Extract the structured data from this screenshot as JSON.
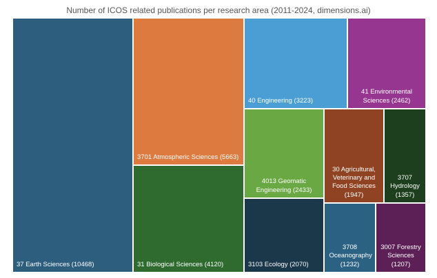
{
  "chart_data": {
    "type": "treemap",
    "title": "Number of ICOS related publications per research area (2011-2024, dimensions.ai)",
    "items": [
      {
        "label": "37 Earth Sciences (10468)",
        "category": "37 Earth Sciences",
        "value": 10468,
        "color": "#2e5e7e"
      },
      {
        "label": "3701 Atmospheric Sciences (5663)",
        "category": "3701 Atmospheric Sciences",
        "value": 5663,
        "color": "#dd7a40"
      },
      {
        "label": "31 Biological Sciences (4120)",
        "category": "31 Biological Sciences",
        "value": 4120,
        "color": "#2f6b2f"
      },
      {
        "label": "40 Engineering (3223)",
        "category": "40 Engineering",
        "value": 3223,
        "color": "#4a9ed4"
      },
      {
        "label": "41 Environmental Sciences (2462)",
        "category": "41 Environmental Sciences",
        "value": 2462,
        "color": "#973690"
      },
      {
        "label": "4013 Geomatic Engineering (2433)",
        "category": "4013 Geomatic Engineering",
        "value": 2433,
        "color": "#6aa843"
      },
      {
        "label": "30 Agricultural, Veterinary and Food Sciences (1947)",
        "category": "30 Agricultural, Veterinary and Food Sciences",
        "value": 1947,
        "color": "#8f4322"
      },
      {
        "label": "3707 Hydrology (1357)",
        "category": "3707 Hydrology",
        "value": 1357,
        "color": "#1e3f1e"
      },
      {
        "label": "3103 Ecology (2070)",
        "category": "3103 Ecology",
        "value": 2070,
        "color": "#1b374a"
      },
      {
        "label": "3708 Oceanography (1232)",
        "category": "3708 Oceanography",
        "value": 1232,
        "color": "#2b6283"
      },
      {
        "label": "3007 Forestry Sciences (1207)",
        "category": "3007 Forestry Sciences",
        "value": 1207,
        "color": "#5c2056"
      }
    ]
  }
}
